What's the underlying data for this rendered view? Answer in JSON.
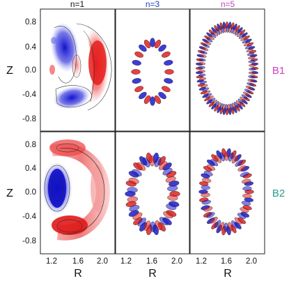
{
  "chart_data": {
    "type": "heatmap",
    "columns": [
      {
        "label": "n=1",
        "color": "#111111"
      },
      {
        "label": "n=3",
        "color": "#1f3fbf"
      },
      {
        "label": "n=5",
        "color": "#c040c0"
      }
    ],
    "rows": [
      {
        "label": "B1",
        "color": "#d23fc8"
      },
      {
        "label": "B2",
        "color": "#2a9d8f"
      }
    ],
    "xlabel": "R",
    "ylabel": "Z",
    "x_ticks": [
      "1.2",
      "1.6",
      "2.0"
    ],
    "y_ticks": [
      "0.8",
      "0.4",
      "0.0",
      "-0.4",
      "-0.8"
    ],
    "xlim": [
      1.05,
      2.35
    ],
    "ylim": [
      -0.95,
      0.95
    ],
    "colormap": {
      "positive": "#e02020",
      "negative": "#1a1ad0",
      "zero": "#ffffff"
    }
  }
}
